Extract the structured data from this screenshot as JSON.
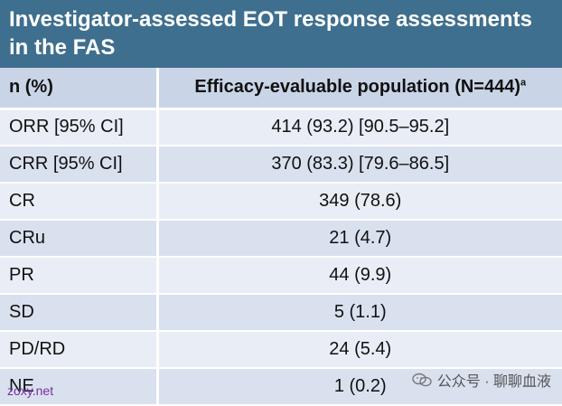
{
  "title": "Investigator-assessed EOT response assessments in the FAS",
  "table": {
    "header": {
      "col1": "n (%)",
      "col2": "Efficacy-evaluable population (N=444)",
      "col2_sup": "a"
    },
    "rows": [
      {
        "label": "ORR [95% CI]",
        "value": "414 (93.2) [90.5–95.2]"
      },
      {
        "label": "CRR [95% CI]",
        "value": "370 (83.3) [79.6–86.5]"
      },
      {
        "label": "CR",
        "value": "349 (78.6)"
      },
      {
        "label": "CRu",
        "value": "21 (4.7)"
      },
      {
        "label": "PR",
        "value": "44 (9.9)"
      },
      {
        "label": "SD",
        "value": "5 (1.1)"
      },
      {
        "label": "PD/RD",
        "value": "24 (5.4)"
      },
      {
        "label": "NE",
        "value": "1 (0.2)"
      }
    ]
  },
  "watermark": {
    "left": "zoxy.net",
    "right": "公众号 · 聊聊血液",
    "icon": "wechat-icon"
  }
}
